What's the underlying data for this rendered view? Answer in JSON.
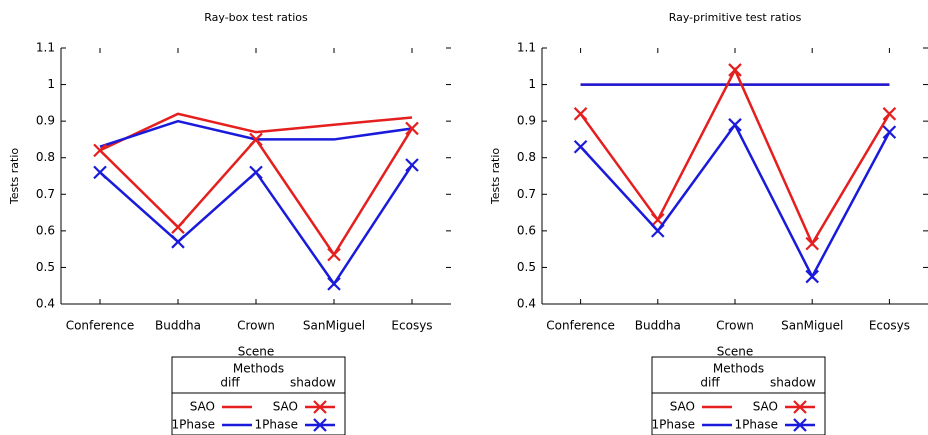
{
  "chart_data": [
    {
      "type": "line",
      "title": "Ray-box test ratios",
      "xlabel": "Scene",
      "ylabel": "Tests ratio",
      "categories": [
        "Conference",
        "Buddha",
        "Crown",
        "SanMiguel",
        "Ecosys"
      ],
      "ylim": [
        0.4,
        1.1
      ],
      "yticks": [
        0.4,
        0.5,
        0.6,
        0.7,
        0.8,
        0.9,
        1,
        1.1
      ],
      "legend": {
        "title": "Methods",
        "series_groups": [
          {
            "name": "diff",
            "style": "line",
            "series": [
              {
                "name": "SAO",
                "color": "#e51e1e",
                "values": [
                  0.82,
                  0.92,
                  0.87,
                  0.89,
                  0.91
                ]
              },
              {
                "name": "1Phase",
                "color": "#1a1adb",
                "values": [
                  0.83,
                  0.9,
                  0.85,
                  0.85,
                  0.88
                ]
              }
            ]
          },
          {
            "name": "shadow",
            "style": "line-cross",
            "series": [
              {
                "name": "SAO",
                "color": "#e51e1e",
                "values": [
                  0.82,
                  0.61,
                  0.85,
                  0.535,
                  0.88
                ]
              },
              {
                "name": "1Phase",
                "color": "#1a1adb",
                "values": [
                  0.76,
                  0.57,
                  0.76,
                  0.455,
                  0.78
                ]
              }
            ]
          }
        ]
      }
    },
    {
      "type": "line",
      "title": "Ray-primitive test ratios",
      "xlabel": "Scene",
      "ylabel": "Tests ratio",
      "categories": [
        "Conference",
        "Buddha",
        "Crown",
        "SanMiguel",
        "Ecosys"
      ],
      "ylim": [
        0.4,
        1.1
      ],
      "yticks": [
        0.4,
        0.5,
        0.6,
        0.7,
        0.8,
        0.9,
        1,
        1.1
      ],
      "legend": {
        "title": "Methods",
        "series_groups": [
          {
            "name": "diff",
            "style": "line",
            "series": [
              {
                "name": "SAO",
                "color": "#e51e1e",
                "values": [
                  1,
                  1,
                  1,
                  1,
                  1
                ]
              },
              {
                "name": "1Phase",
                "color": "#1a1adb",
                "values": [
                  1,
                  1,
                  1,
                  1,
                  1
                ]
              }
            ]
          },
          {
            "name": "shadow",
            "style": "line-cross",
            "series": [
              {
                "name": "SAO",
                "color": "#e51e1e",
                "values": [
                  0.92,
                  0.63,
                  1.04,
                  0.565,
                  0.92
                ]
              },
              {
                "name": "1Phase",
                "color": "#1a1adb",
                "values": [
                  0.83,
                  0.6,
                  0.89,
                  0.475,
                  0.87
                ]
              }
            ]
          }
        ]
      }
    }
  ]
}
